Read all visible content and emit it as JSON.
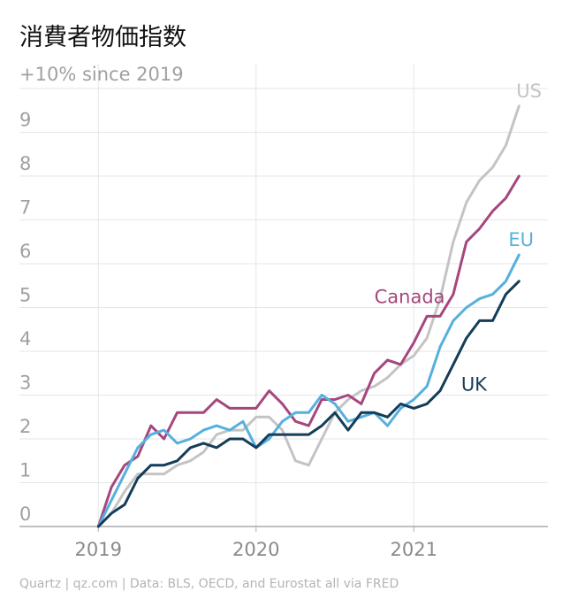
{
  "chart_data": {
    "type": "line",
    "title": "消費者物価指数",
    "ylabel": "+10% since 2019",
    "xlabel": "",
    "ylim": [
      0,
      10
    ],
    "xlim": [
      2018.5,
      2021.85
    ],
    "x_ticks": [
      {
        "value": 2019,
        "label": "2019"
      },
      {
        "value": 2020,
        "label": "2020"
      },
      {
        "value": 2021,
        "label": "2021"
      }
    ],
    "y_ticks": [
      {
        "value": 0,
        "label": "0"
      },
      {
        "value": 1,
        "label": "1"
      },
      {
        "value": 2,
        "label": "2"
      },
      {
        "value": 3,
        "label": "3"
      },
      {
        "value": 4,
        "label": "4"
      },
      {
        "value": 5,
        "label": "5"
      },
      {
        "value": 6,
        "label": "6"
      },
      {
        "value": 7,
        "label": "7"
      },
      {
        "value": 8,
        "label": "8"
      },
      {
        "value": 9,
        "label": "9"
      }
    ],
    "grid": true,
    "x_start": 2019.0,
    "x_step": 0.08333,
    "series": [
      {
        "name": "US",
        "color": "#c4c4c4",
        "values": [
          0,
          0.3,
          0.8,
          1.2,
          1.2,
          1.2,
          1.4,
          1.5,
          1.7,
          2.1,
          2.2,
          2.2,
          2.5,
          2.5,
          2.2,
          1.5,
          1.4,
          2.0,
          2.6,
          2.9,
          3.1,
          3.2,
          3.4,
          3.7,
          3.9,
          4.3,
          5.2,
          6.5,
          7.4,
          7.9,
          8.2,
          8.7,
          9.6
        ]
      },
      {
        "name": "Canada",
        "color": "#a5477e",
        "values": [
          0,
          0.9,
          1.4,
          1.6,
          2.3,
          2.0,
          2.6,
          2.6,
          2.6,
          2.9,
          2.7,
          2.7,
          2.7,
          3.1,
          2.8,
          2.4,
          2.3,
          2.9,
          2.9,
          3.0,
          2.8,
          3.5,
          3.8,
          3.7,
          4.2,
          4.8,
          4.8,
          5.3,
          6.5,
          6.8,
          7.2,
          7.5,
          8.0
        ]
      },
      {
        "name": "EU",
        "color": "#56b0de",
        "values": [
          0,
          0.6,
          1.2,
          1.8,
          2.1,
          2.2,
          1.9,
          2.0,
          2.2,
          2.3,
          2.2,
          2.4,
          1.8,
          2.0,
          2.4,
          2.6,
          2.6,
          3.0,
          2.8,
          2.4,
          2.5,
          2.6,
          2.3,
          2.7,
          2.9,
          3.2,
          4.1,
          4.7,
          5.0,
          5.2,
          5.3,
          5.6,
          6.2
        ]
      },
      {
        "name": "UK",
        "color": "#143d59",
        "values": [
          0,
          0.3,
          0.5,
          1.1,
          1.4,
          1.4,
          1.5,
          1.8,
          1.9,
          1.8,
          2.0,
          2.0,
          1.8,
          2.1,
          2.1,
          2.1,
          2.1,
          2.3,
          2.6,
          2.2,
          2.6,
          2.6,
          2.5,
          2.8,
          2.7,
          2.8,
          3.1,
          3.7,
          4.3,
          4.7,
          4.7,
          5.3,
          5.6
        ]
      }
    ],
    "annotations": [
      {
        "series": "US",
        "text": "US",
        "x": 2021.65,
        "y": 9.8
      },
      {
        "series": "Canada",
        "text": "Canada",
        "x": 2020.75,
        "y": 5.1
      },
      {
        "series": "EU",
        "text": "EU",
        "x": 2021.6,
        "y": 6.4
      },
      {
        "series": "UK",
        "text": "UK",
        "x": 2021.3,
        "y": 3.1
      }
    ]
  },
  "footer": "Quartz | qz.com | Data: BLS, OECD, and Eurostat all via FRED"
}
